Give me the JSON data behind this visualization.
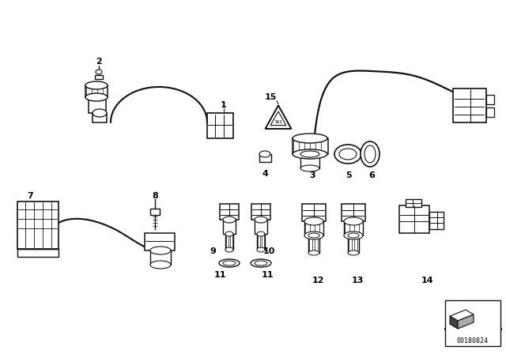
{
  "bg_color": "#ffffff",
  "part_number": "00180824",
  "figsize": [
    6.4,
    4.48
  ],
  "dpi": 100,
  "lc": "#111111",
  "lw_main": 1.3,
  "lw_thin": 0.7
}
